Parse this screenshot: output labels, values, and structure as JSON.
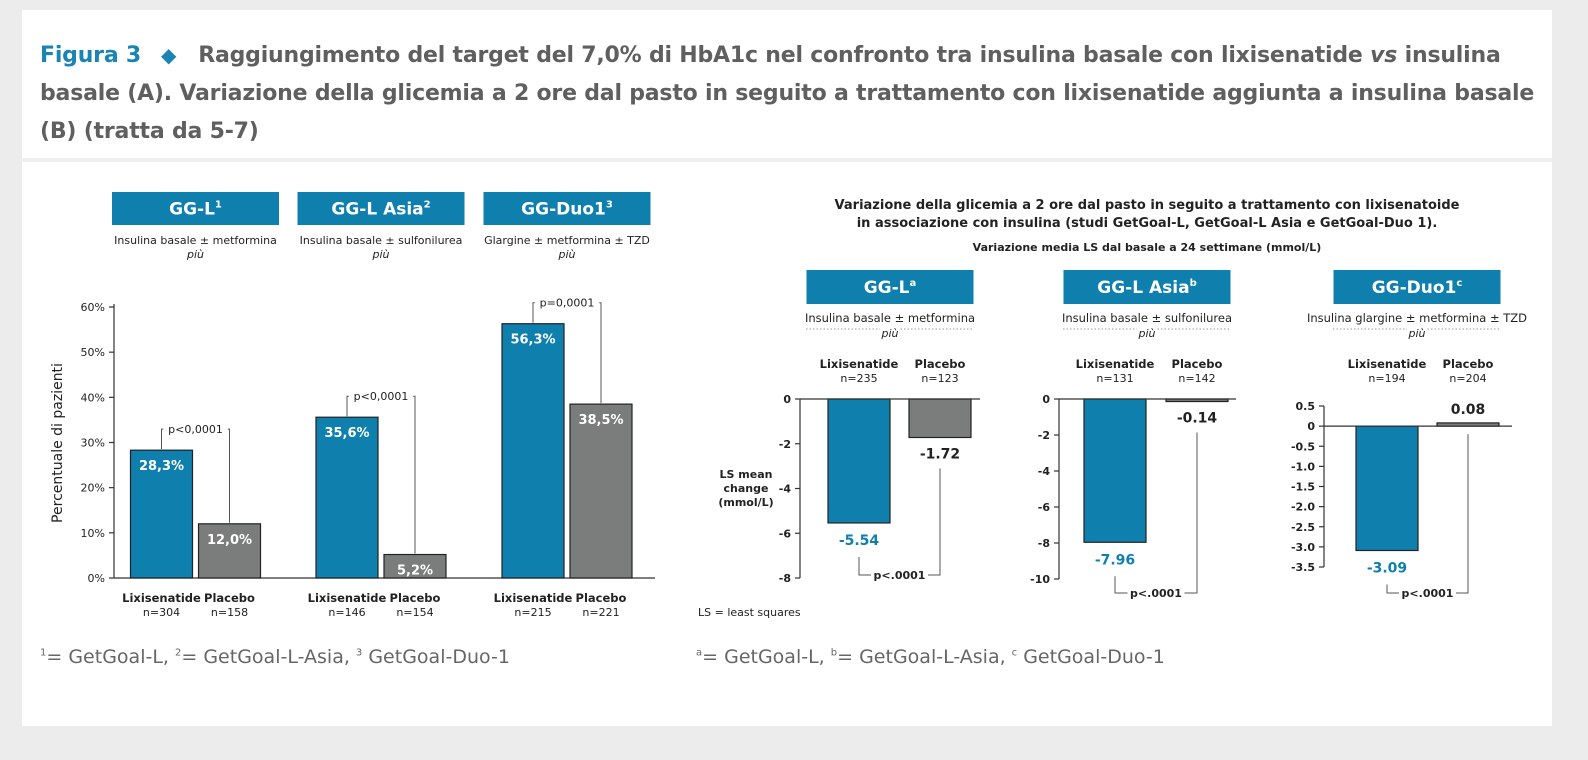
{
  "title": {
    "figure_label": "Figura 3",
    "text_part1": "Raggiungimento del target del 7,0% di HbA1c nel confronto tra insulina basale con lixisenatide",
    "vs": "vs",
    "text_part2": "insulina basale (A). Variazione della glicemia a 2 ore dal pasto in seguito a trattamento con lixisenatide aggiunta a insulina basale (B) (tratta da 5-7)"
  },
  "footnotes": {
    "left": {
      "m1": "1",
      "t1": "= GetGoal-L, ",
      "m2": "2",
      "t2": "= GetGoal-L-Asia, ",
      "m3": "3",
      "t3": " GetGoal-Duo-1"
    },
    "right": {
      "m1": "a",
      "t1": "= GetGoal-L, ",
      "m2": "b",
      "t2": "= GetGoal-L-Asia, ",
      "m3": "c",
      "t3": " GetGoal-Duo-1"
    }
  },
  "colors": {
    "blue": "#0f7fae",
    "gray": "#7b7c7c",
    "title_blue": "#1a84b4",
    "title_gray": "#5f5f5f"
  },
  "chart_data": [
    {
      "type": "bar",
      "ylabel": "Percentuale di pazienti",
      "ylim": [
        0,
        60
      ],
      "yticks": [
        "0%",
        "10%",
        "20%",
        "30%",
        "40%",
        "50%",
        "60%"
      ],
      "value_suffix": "%",
      "groups": [
        {
          "header": "GG-L",
          "sup": "1",
          "subtitle": "Insulina basale ± metformina",
          "piu": "più",
          "bars": [
            {
              "label": "Lixisenatide",
              "n": "n=304",
              "value": 28.3,
              "text": "28,3%",
              "color": "blue"
            },
            {
              "label": "Placebo",
              "n": "n=158",
              "value": 12.0,
              "text": "12,0%",
              "color": "gray"
            }
          ],
          "p_value": "p<0,0001"
        },
        {
          "header": "GG-L Asia",
          "sup": "2",
          "subtitle": "Insulina basale ± sulfonilurea",
          "piu": "più",
          "bars": [
            {
              "label": "Lixisenatide",
              "n": "n=146",
              "value": 35.6,
              "text": "35,6%",
              "color": "blue"
            },
            {
              "label": "Placebo",
              "n": "n=154",
              "value": 5.2,
              "text": "5,2%",
              "color": "gray"
            }
          ],
          "p_value": "p<0,0001"
        },
        {
          "header": "GG-Duo1",
          "sup": "3",
          "subtitle": "Glargine ± metformina ± TZD",
          "piu": "più",
          "bars": [
            {
              "label": "Lixisenatide",
              "n": "n=215",
              "value": 56.3,
              "text": "56,3%",
              "color": "blue"
            },
            {
              "label": "Placebo",
              "n": "n=221",
              "value": 38.5,
              "text": "38,5%",
              "color": "gray"
            }
          ],
          "p_value": "p=0,0001"
        }
      ]
    },
    {
      "type": "bar",
      "title_line1": "Variazione della glicemia a 2 ore dal pasto in seguito a trattamento con lixisenatoide",
      "title_line2": "in associazione con insulina (studi GetGoal-L, GetGoal-L Asia e GetGoal-Duo 1).",
      "subtitle": "Variazione media LS dal basale a 24 settimane (mmol/L)",
      "ylabel_lines": [
        "LS mean",
        "change",
        "(mmol/L)"
      ],
      "note": "LS = least squares",
      "panels": [
        {
          "header": "GG-L",
          "sup": "a",
          "subtitle": "Insulina basale ± metformina",
          "piu": "più",
          "ylim": [
            -8,
            0
          ],
          "yticks": [
            "0",
            "-2",
            "-4",
            "-6",
            "-8"
          ],
          "ytick_values": [
            0,
            -2,
            -4,
            -6,
            -8
          ],
          "bars": [
            {
              "label": "Lixisenatide",
              "n": "n=235",
              "value": -5.54,
              "text": "-5.54",
              "color": "blue"
            },
            {
              "label": "Placebo",
              "n": "n=123",
              "value": -1.72,
              "text": "-1.72",
              "color": "gray"
            }
          ],
          "p_value": "p<.0001"
        },
        {
          "header": "GG-L Asia",
          "sup": "b",
          "subtitle": "Insulina basale ± sulfonilurea",
          "piu": "più",
          "ylim": [
            -10,
            0
          ],
          "yticks": [
            "0",
            "-2",
            "-4",
            "-6",
            "-8",
            "-10"
          ],
          "ytick_values": [
            0,
            -2,
            -4,
            -6,
            -8,
            -10
          ],
          "bars": [
            {
              "label": "Lixisenatide",
              "n": "n=131",
              "value": -7.96,
              "text": "-7.96",
              "color": "blue"
            },
            {
              "label": "Placebo",
              "n": "n=142",
              "value": -0.14,
              "text": "-0.14",
              "color": "gray"
            }
          ],
          "p_value": "p<.0001"
        },
        {
          "header": "GG-Duo1",
          "sup": "c",
          "subtitle": "Insulina glargine ± metformina ± TZD",
          "piu": "più",
          "ylim": [
            -3.5,
            0.5
          ],
          "yticks": [
            "0.5",
            "0",
            "-0.5",
            "-1.0",
            "-1.5",
            "-2.0",
            "-2.5",
            "-3.0",
            "-3.5"
          ],
          "ytick_values": [
            0.5,
            0,
            -0.5,
            -1.0,
            -1.5,
            -2.0,
            -2.5,
            -3.0,
            -3.5
          ],
          "bars": [
            {
              "label": "Lixisenatide",
              "n": "n=194",
              "value": -3.09,
              "text": "-3.09",
              "color": "blue"
            },
            {
              "label": "Placebo",
              "n": "n=204",
              "value": 0.08,
              "text": "0.08",
              "color": "gray"
            }
          ],
          "p_value": "p<.0001"
        }
      ]
    }
  ]
}
